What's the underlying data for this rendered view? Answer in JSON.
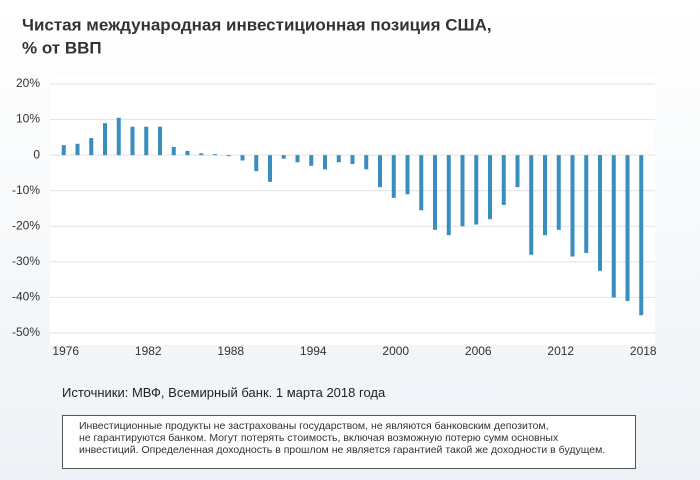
{
  "chart_data": {
    "type": "bar",
    "title": "Чистая международная инвестиционная позиция США,",
    "subtitle": "% от ВВП",
    "source": "Источники: МВФ, Всемирный банк. 1 марта 2018 года",
    "disclaimer": [
      "Инвестиционные продукты не застрахованы государством, не являются банковским депозитом,",
      "не гарантируются банком. Могут потерять стоимость, включая возможную потерю сумм основных",
      "инвестиций. Определенная доходность в прошлом не является гарантией такой же доходности в будущем."
    ],
    "x": [
      1976,
      1977,
      1978,
      1979,
      1980,
      1981,
      1982,
      1983,
      1984,
      1985,
      1986,
      1987,
      1988,
      1989,
      1990,
      1991,
      1992,
      1993,
      1994,
      1995,
      1996,
      1997,
      1998,
      1999,
      2000,
      2001,
      2002,
      2003,
      2004,
      2005,
      2006,
      2007,
      2008,
      2009,
      2010,
      2011,
      2012,
      2013,
      2014,
      2015,
      2016,
      2017,
      2018
    ],
    "values": [
      2.8,
      3.2,
      4.8,
      9,
      10.5,
      8,
      8,
      8,
      2.3,
      1.2,
      0.5,
      0.3,
      -0.3,
      -1.5,
      -4.5,
      -7.5,
      -1,
      -2,
      -3,
      -4,
      -2,
      -2.5,
      -4,
      -9,
      -12,
      -11,
      -15.5,
      -21,
      -22.5,
      -20,
      -19.5,
      -18,
      -14,
      -9,
      -28,
      -22.5,
      -21,
      -28.5,
      -27.5,
      -32.5,
      -40,
      -41,
      -45
    ],
    "color": "#3a8dbf",
    "xlim": [
      1975,
      2019
    ],
    "xticks": [
      1976,
      1982,
      1988,
      1994,
      2000,
      2006,
      2012,
      2018
    ],
    "ylim": [
      -50,
      20
    ],
    "yticks": [
      {
        "value": 20,
        "label": "20%"
      },
      {
        "value": 10,
        "label": "10%"
      },
      0,
      {
        "value": -10,
        "label": "-10%"
      },
      {
        "value": -20,
        "label": "-20%"
      },
      {
        "value": -30,
        "label": "-30%"
      },
      {
        "value": -40,
        "label": "-40%"
      },
      {
        "value": -50,
        "label": "-50%"
      }
    ],
    "grid": true
  }
}
